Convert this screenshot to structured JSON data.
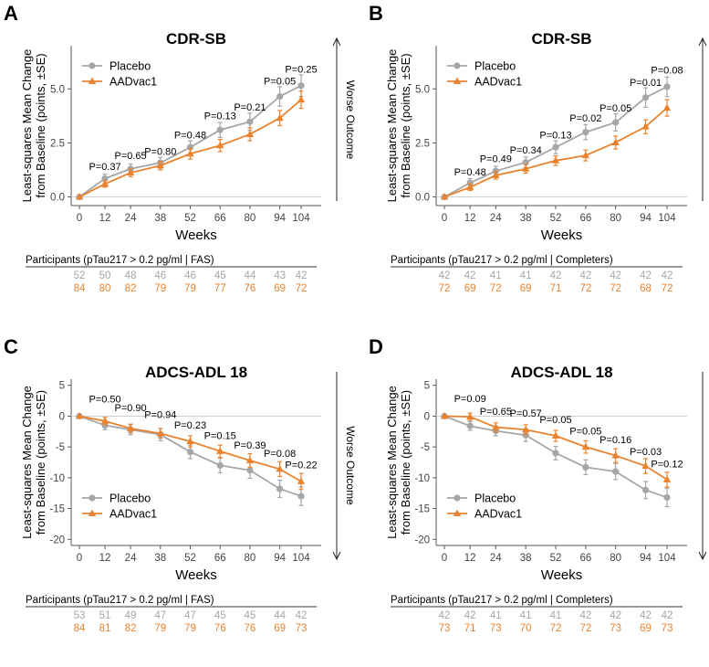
{
  "colors": {
    "placebo": "#a6a6a6",
    "aadvac1": "#e9832f",
    "axis": "#555555",
    "zero": "#cfcfcf",
    "text": "#000000"
  },
  "axis_label_x": "Weeks",
  "worse_outcome": "Worse Outcome",
  "chart_data": [
    {
      "panel": "A",
      "type": "line",
      "title": "CDR-SB",
      "ylabel_lines": [
        "Least-squares Mean Change",
        "from Baseline (points, ±SE)"
      ],
      "xlabel": "Weeks",
      "x": [
        0,
        12,
        24,
        38,
        52,
        66,
        80,
        94,
        104
      ],
      "x_tick_labels": [
        "0",
        "12",
        "24",
        "38",
        "52",
        "66",
        "80",
        "94",
        "104"
      ],
      "ylim": [
        -0.4,
        7.0
      ],
      "y_ticks": [
        0,
        2.5,
        5
      ],
      "y_tick_labels": [
        "0.0",
        "2.5",
        "5.0"
      ],
      "legend_position": "top-left",
      "worse_direction": "up",
      "series": [
        {
          "name": "Placebo",
          "marker": "circle",
          "values": [
            0,
            0.85,
            1.3,
            1.58,
            2.3,
            3.1,
            3.48,
            4.65,
            5.15
          ],
          "se": [
            0,
            0.2,
            0.22,
            0.25,
            0.3,
            0.35,
            0.4,
            0.45,
            0.5
          ]
        },
        {
          "name": "AADvac1",
          "marker": "triangle",
          "values": [
            0,
            0.6,
            1.12,
            1.45,
            2.0,
            2.38,
            2.9,
            3.65,
            4.5
          ],
          "se": [
            0,
            0.15,
            0.18,
            0.2,
            0.25,
            0.28,
            0.3,
            0.35,
            0.4
          ]
        }
      ],
      "annotations": [
        {
          "x": 12,
          "text": "P=0.37",
          "y": 1.25
        },
        {
          "x": 24,
          "text": "P=0.65",
          "y": 1.75
        },
        {
          "x": 38,
          "text": "P=0.80",
          "y": 1.95
        },
        {
          "x": 52,
          "text": "P=0.48",
          "y": 2.7
        },
        {
          "x": 66,
          "text": "P=0.13",
          "y": 3.6
        },
        {
          "x": 80,
          "text": "P=0.21",
          "y": 4.0
        },
        {
          "x": 94,
          "text": "P=0.05",
          "y": 5.2
        },
        {
          "x": 104,
          "text": "P=0.25",
          "y": 5.75
        }
      ],
      "participants": {
        "label": "Participants (pTau217 > 0.2 pg/ml | FAS)",
        "placebo": [
          "52",
          "50",
          "48",
          "46",
          "46",
          "45",
          "44",
          "43",
          "42"
        ],
        "aadvac1": [
          "84",
          "80",
          "82",
          "79",
          "79",
          "77",
          "76",
          "69",
          "72"
        ]
      }
    },
    {
      "panel": "B",
      "type": "line",
      "title": "CDR-SB",
      "ylabel_lines": [
        "Least-squares Mean Change",
        "from Baseline (points, ±SE)"
      ],
      "xlabel": "Weeks",
      "x": [
        0,
        12,
        24,
        38,
        52,
        66,
        80,
        94,
        104
      ],
      "x_tick_labels": [
        "0",
        "12",
        "24",
        "38",
        "52",
        "66",
        "80",
        "94",
        "104"
      ],
      "ylim": [
        -0.4,
        7.0
      ],
      "y_ticks": [
        0,
        2.5,
        5
      ],
      "y_tick_labels": [
        "0.0",
        "2.5",
        "5.0"
      ],
      "legend_position": "top-left",
      "worse_direction": "up",
      "series": [
        {
          "name": "Placebo",
          "marker": "circle",
          "values": [
            0,
            0.65,
            1.2,
            1.6,
            2.3,
            3.0,
            3.45,
            4.6,
            5.1
          ],
          "se": [
            0,
            0.2,
            0.22,
            0.25,
            0.3,
            0.35,
            0.4,
            0.45,
            0.45
          ]
        },
        {
          "name": "AADvac1",
          "marker": "triangle",
          "values": [
            0,
            0.45,
            1.0,
            1.3,
            1.68,
            1.92,
            2.52,
            3.25,
            4.12
          ],
          "se": [
            0,
            0.15,
            0.18,
            0.2,
            0.22,
            0.25,
            0.3,
            0.32,
            0.38
          ]
        }
      ],
      "annotations": [
        {
          "x": 12,
          "text": "P=0.48",
          "y": 1.0
        },
        {
          "x": 24,
          "text": "P=0.49",
          "y": 1.6
        },
        {
          "x": 38,
          "text": "P=0.34",
          "y": 2.0
        },
        {
          "x": 52,
          "text": "P=0.13",
          "y": 2.7
        },
        {
          "x": 66,
          "text": "P=0.02",
          "y": 3.5
        },
        {
          "x": 80,
          "text": "P=0.05",
          "y": 3.95
        },
        {
          "x": 94,
          "text": "P=0.01",
          "y": 5.15
        },
        {
          "x": 104,
          "text": "P=0.08",
          "y": 5.7
        }
      ],
      "participants": {
        "label": "Participants (pTau217 > 0.2 pg/ml | Completers)",
        "placebo": [
          "42",
          "42",
          "41",
          "41",
          "42",
          "42",
          "42",
          "42",
          "42"
        ],
        "aadvac1": [
          "72",
          "69",
          "72",
          "69",
          "71",
          "72",
          "72",
          "68",
          "72"
        ]
      }
    },
    {
      "panel": "C",
      "type": "line",
      "title": "ADCS-ADL 18",
      "ylabel_lines": [
        "Least-squares Mean Change",
        "from Baseline (points, ±SE)"
      ],
      "xlabel": "Weeks",
      "x": [
        0,
        12,
        24,
        38,
        52,
        66,
        80,
        94,
        104
      ],
      "x_tick_labels": [
        "0",
        "12",
        "24",
        "38",
        "52",
        "66",
        "80",
        "94",
        "104"
      ],
      "ylim": [
        -21,
        6
      ],
      "y_ticks": [
        5,
        0,
        -5,
        -10,
        -15,
        -20
      ],
      "y_tick_labels": [
        "5",
        "0",
        "-5",
        "-10",
        "-15",
        "-20"
      ],
      "legend_position": "bottom-left",
      "worse_direction": "down",
      "series": [
        {
          "name": "Placebo",
          "marker": "circle",
          "values": [
            0,
            -1.5,
            -2.2,
            -3.0,
            -5.8,
            -8.0,
            -8.8,
            -11.8,
            -13.0
          ],
          "se": [
            0,
            0.7,
            0.8,
            1.0,
            1.1,
            1.2,
            1.3,
            1.4,
            1.5
          ]
        },
        {
          "name": "AADvac1",
          "marker": "triangle",
          "values": [
            0,
            -0.8,
            -2.0,
            -2.8,
            -4.1,
            -5.7,
            -7.2,
            -8.6,
            -10.6
          ],
          "se": [
            0,
            0.6,
            0.7,
            0.8,
            0.9,
            1.0,
            1.1,
            1.2,
            1.3
          ]
        }
      ],
      "annotations": [
        {
          "x": 12,
          "text": "P=0.50",
          "y": 2.2
        },
        {
          "x": 24,
          "text": "P=0.90",
          "y": 0.8
        },
        {
          "x": 38,
          "text": "P=0.94",
          "y": -0.3
        },
        {
          "x": 52,
          "text": "P=0.23",
          "y": -2.0
        },
        {
          "x": 66,
          "text": "P=0.15",
          "y": -3.7
        },
        {
          "x": 80,
          "text": "P=0.39",
          "y": -5.3
        },
        {
          "x": 94,
          "text": "P=0.08",
          "y": -6.6
        },
        {
          "x": 104,
          "text": "P=0.22",
          "y": -8.5
        }
      ],
      "participants": {
        "label": "Participants (pTau217 > 0.2 pg/ml | FAS)",
        "placebo": [
          "53",
          "51",
          "49",
          "47",
          "47",
          "45",
          "45",
          "44",
          "42"
        ],
        "aadvac1": [
          "84",
          "81",
          "82",
          "79",
          "79",
          "76",
          "76",
          "69",
          "73"
        ]
      }
    },
    {
      "panel": "D",
      "type": "line",
      "title": "ADCS-ADL 18",
      "ylabel_lines": [
        "Least-squares Mean Change",
        "from Baseline (points, ±SE)"
      ],
      "xlabel": "Weeks",
      "x": [
        0,
        12,
        24,
        38,
        52,
        66,
        80,
        94,
        104
      ],
      "x_tick_labels": [
        "0",
        "12",
        "24",
        "38",
        "52",
        "66",
        "80",
        "94",
        "104"
      ],
      "ylim": [
        -21,
        6
      ],
      "y_ticks": [
        5,
        0,
        -5,
        -10,
        -15,
        -20
      ],
      "y_tick_labels": [
        "5",
        "0",
        "-5",
        "-10",
        "-15",
        "-20"
      ],
      "legend_position": "bottom-left",
      "worse_direction": "down",
      "series": [
        {
          "name": "Placebo",
          "marker": "circle",
          "values": [
            0,
            -1.6,
            -2.4,
            -3.1,
            -6.0,
            -8.3,
            -9.0,
            -12.0,
            -13.2
          ],
          "se": [
            0,
            0.7,
            0.8,
            1.0,
            1.1,
            1.2,
            1.3,
            1.4,
            1.5
          ]
        },
        {
          "name": "AADvac1",
          "marker": "triangle",
          "values": [
            0,
            -0.1,
            -1.8,
            -2.2,
            -3.2,
            -5.0,
            -6.4,
            -8.1,
            -10.3
          ],
          "se": [
            0,
            0.6,
            0.7,
            0.8,
            0.9,
            1.0,
            1.1,
            1.2,
            1.2
          ]
        }
      ],
      "annotations": [
        {
          "x": 12,
          "text": "P=0.09",
          "y": 2.3
        },
        {
          "x": 24,
          "text": "P=0.65",
          "y": 0.2
        },
        {
          "x": 38,
          "text": "P=0.57",
          "y": -0.1
        },
        {
          "x": 52,
          "text": "P=0.05",
          "y": -1.1
        },
        {
          "x": 66,
          "text": "P=0.05",
          "y": -3.0
        },
        {
          "x": 80,
          "text": "P=0.16",
          "y": -4.4
        },
        {
          "x": 94,
          "text": "P=0.03",
          "y": -6.3
        },
        {
          "x": 104,
          "text": "P=0.12",
          "y": -8.3
        }
      ],
      "participants": {
        "label": "Participants (pTau217 > 0.2 pg/ml | Completers)",
        "placebo": [
          "42",
          "42",
          "41",
          "41",
          "41",
          "42",
          "42",
          "42",
          "42"
        ],
        "aadvac1": [
          "73",
          "71",
          "73",
          "70",
          "72",
          "72",
          "73",
          "69",
          "73"
        ]
      }
    }
  ]
}
